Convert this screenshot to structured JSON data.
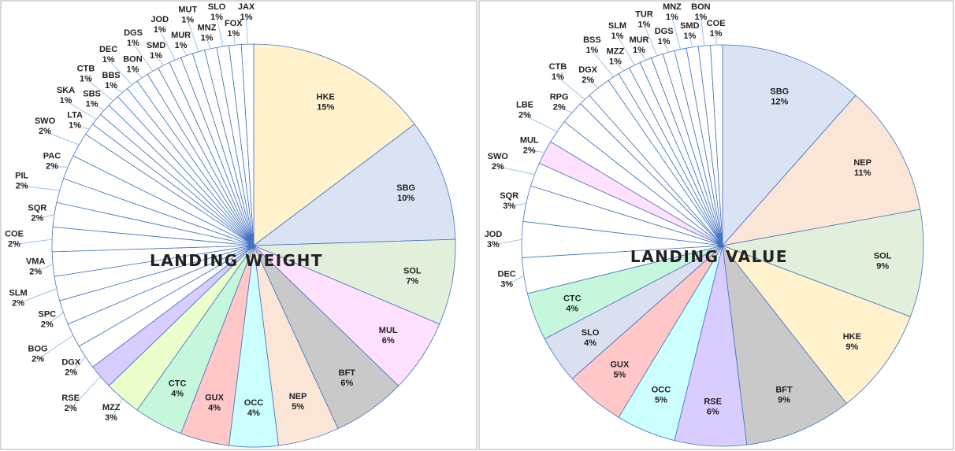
{
  "chart_data": [
    {
      "type": "pie",
      "title": "LANDING WEIGHT",
      "categories": [
        "HKE",
        "SBG",
        "SOL",
        "MUL",
        "BFT",
        "NEP",
        "OCC",
        "GUX",
        "CTC",
        "MZZ",
        "RSE",
        "DGX",
        "BOG",
        "SPC",
        "SLM",
        "VMA",
        "COE",
        "SQR",
        "PIL",
        "PAC",
        "SWO",
        "LTA",
        "SKA",
        "SBS",
        "CTB",
        "BBS",
        "DEC",
        "BON",
        "DGS",
        "SMD",
        "JOD",
        "MUR",
        "MUT",
        "MNZ",
        "SLO",
        "FOX",
        "JAX"
      ],
      "values": [
        15,
        10,
        7,
        6,
        6,
        5,
        4,
        4,
        4,
        3,
        2,
        2,
        2,
        2,
        2,
        2,
        2,
        2,
        2,
        2,
        2,
        1,
        1,
        1,
        1,
        1,
        1,
        1,
        1,
        1,
        1,
        1,
        1,
        1,
        1,
        1,
        1
      ],
      "value_labels": [
        "15%",
        "10%",
        "7%",
        "6%",
        "6%",
        "5%",
        "4%",
        "4%",
        "4%",
        "3%",
        "2%",
        "2%",
        "2%",
        "2%",
        "2%",
        "2%",
        "2%",
        "2%",
        "2%",
        "2%",
        "2%",
        "1%",
        "1%",
        "1%",
        "1%",
        "1%",
        "1%",
        "1%",
        "1%",
        "1%",
        "1%",
        "1%",
        "1%",
        "1%",
        "1%",
        "1%",
        "1%"
      ],
      "colors": [
        "#fff2cc",
        "#dae3f3",
        "#e2efda",
        "#ffe0ff",
        "#c9c9c9",
        "#fbe5d6",
        "#ccffff",
        "#ffc7c7",
        "#c6f7dd",
        "#eaffcc",
        "#d9ccff",
        "#ffffff",
        "#ffffff",
        "#ffffff",
        "#ffffff",
        "#ffffff",
        "#ffffff",
        "#ffffff",
        "#ffffff",
        "#ffffff",
        "#ffffff",
        "#ffffff",
        "#ffffff",
        "#ffffff",
        "#ffffff",
        "#ffffff",
        "#ffffff",
        "#ffffff",
        "#ffffff",
        "#ffffff",
        "#ffffff",
        "#ffffff",
        "#ffffff",
        "#ffffff",
        "#ffffff",
        "#ffffff",
        "#ffffff"
      ]
    },
    {
      "type": "pie",
      "title": "LANDING VALUE",
      "categories": [
        "SBG",
        "NEP",
        "SOL",
        "HKE",
        "BFT",
        "RSE",
        "OCC",
        "GUX",
        "SLO",
        "CTC",
        "DEC",
        "JOD",
        "SQR",
        "SWO",
        "MUL",
        "LBE",
        "RPG",
        "CTB",
        "DGX",
        "BSS",
        "MZZ",
        "SLM",
        "MUR",
        "TUR",
        "DGS",
        "MNZ",
        "SMD",
        "BON",
        "COE"
      ],
      "values": [
        12,
        11,
        9,
        9,
        9,
        6,
        5,
        5,
        4,
        4,
        3,
        3,
        3,
        2,
        2,
        2,
        2,
        1,
        2,
        1,
        1,
        1,
        1,
        1,
        1,
        1,
        1,
        1,
        1
      ],
      "value_labels": [
        "12%",
        "11%",
        "9%",
        "9%",
        "9%",
        "6%",
        "5%",
        "5%",
        "4%",
        "4%",
        "3%",
        "3%",
        "3%",
        "2%",
        "2%",
        "2%",
        "2%",
        "1%",
        "2%",
        "1%",
        "1%",
        "1%",
        "1%",
        "1%",
        "1%",
        "1%",
        "1%",
        "1%",
        "1%"
      ],
      "colors": [
        "#dae3f3",
        "#fbe5d6",
        "#e2efda",
        "#fff2cc",
        "#c9c9c9",
        "#d9ccff",
        "#ccffff",
        "#ffc7c7",
        "#dae0f0",
        "#c6f7dd",
        "#ffffff",
        "#ffffff",
        "#ffffff",
        "#ffffff",
        "#ffe0ff",
        "#ffffff",
        "#ffffff",
        "#ffffff",
        "#ffffff",
        "#ffffff",
        "#ffffff",
        "#ffffff",
        "#ffffff",
        "#ffffff",
        "#ffffff",
        "#ffffff",
        "#ffffff",
        "#ffffff",
        "#ffffff"
      ]
    }
  ]
}
